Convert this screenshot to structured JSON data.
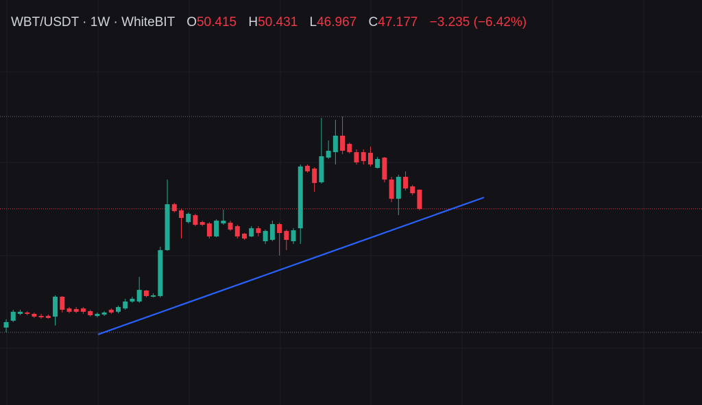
{
  "chart_data": {
    "type": "candlestick",
    "title": "WBT/USDT · 1W · WhiteBIT",
    "ohlc_labels": [
      "O",
      "H",
      "L",
      "C"
    ],
    "ohlc_values": [
      50.415,
      50.431,
      46.967,
      47.177
    ],
    "change": "−3.235",
    "change_pct": "(−6.42%)",
    "up_color": "#22ab94",
    "down_color": "#f23645",
    "ylim": [
      14.1,
      82.4
    ],
    "open": [
      27.16,
      28.31,
      29.47,
      29.7,
      29.47,
      29.12,
      29.12,
      29.01,
      32.36,
      30.39,
      30.28,
      30.39,
      29.93,
      29.12,
      29.35,
      30.16,
      29.82,
      30.39,
      31.55,
      31.55,
      33.4,
      32.36,
      32.47,
      40.22,
      47.96,
      46.92,
      44.95,
      46.11,
      44.95,
      44.72,
      42.53,
      44.72,
      44.84,
      44.26,
      42.99,
      42.53,
      43.91,
      41.72,
      41.95,
      44.61,
      43.45,
      41.72,
      43.91,
      54.43,
      53.97,
      51.66,
      55.82,
      56.74,
      59.52,
      58.13,
      56.74,
      56.74,
      56.63,
      54.09,
      55.82,
      52.12,
      48.88,
      52.58,
      50.96,
      50.415
    ],
    "high": [
      28.54,
      30.16,
      30.16,
      29.93,
      29.7,
      29.47,
      29.35,
      32.59,
      32.47,
      30.62,
      30.62,
      30.62,
      30.16,
      29.7,
      29.93,
      30.39,
      30.86,
      32.01,
      32.36,
      35.71,
      33.51,
      32.94,
      40.79,
      52.12,
      48.19,
      47.15,
      46.57,
      46.34,
      45.19,
      44.95,
      45.42,
      47.04,
      45.19,
      44.49,
      43.11,
      44.26,
      44.26,
      43.68,
      45.19,
      44.84,
      43.68,
      43.91,
      54.66,
      54.66,
      54.2,
      62.52,
      58.71,
      62.18,
      62.75,
      58.36,
      57.21,
      57.21,
      57.67,
      55.93,
      55.93,
      52.58,
      52.93,
      53.51,
      51.2,
      50.431
    ],
    "low": [
      26.35,
      28.08,
      29.24,
      29.24,
      28.78,
      28.66,
      28.66,
      27.5,
      29.7,
      29.58,
      29.58,
      29.47,
      29.01,
      28.89,
      29.12,
      29.47,
      29.58,
      30.16,
      31.32,
      31.32,
      32.24,
      32.24,
      32.24,
      40.1,
      46.57,
      42.18,
      44.72,
      44.26,
      44.26,
      42.18,
      42.41,
      44.49,
      43.45,
      42.18,
      41.95,
      42.41,
      42.53,
      41.26,
      41.72,
      39.29,
      40.22,
      41.26,
      41.26,
      53.28,
      50.04,
      51.43,
      55.59,
      54.66,
      56.4,
      56.51,
      54.66,
      54.66,
      54.32,
      53.97,
      51.66,
      48.31,
      46.11,
      50.27,
      49.46,
      46.967
    ],
    "close": [
      28.08,
      29.82,
      29.82,
      29.47,
      29.01,
      28.89,
      28.78,
      32.36,
      30.16,
      29.82,
      29.82,
      29.82,
      29.24,
      29.47,
      29.7,
      29.7,
      30.62,
      31.55,
      32.01,
      33.51,
      32.47,
      32.59,
      40.22,
      47.96,
      46.8,
      45.65,
      46.34,
      44.49,
      44.49,
      42.53,
      45.19,
      45.19,
      43.68,
      42.53,
      42.18,
      43.91,
      43.11,
      43.45,
      44.61,
      43.11,
      41.95,
      43.57,
      54.32,
      53.51,
      51.54,
      56.05,
      56.97,
      59.52,
      56.97,
      56.74,
      55.01,
      55.24,
      54.66,
      55.59,
      52.12,
      48.88,
      52.58,
      50.62,
      49.81,
      47.177
    ],
    "price_lines": [
      {
        "value": 62.75,
        "color": "#6a6d78"
      },
      {
        "value": 47.177,
        "color": "#f23645"
      },
      {
        "value": 26.35,
        "color": "#6a6d78"
      }
    ],
    "trend_line": {
      "color": "#2962ff",
      "x": [
        13.1,
        68.2
      ],
      "y": [
        26.0,
        49.1
      ]
    }
  }
}
